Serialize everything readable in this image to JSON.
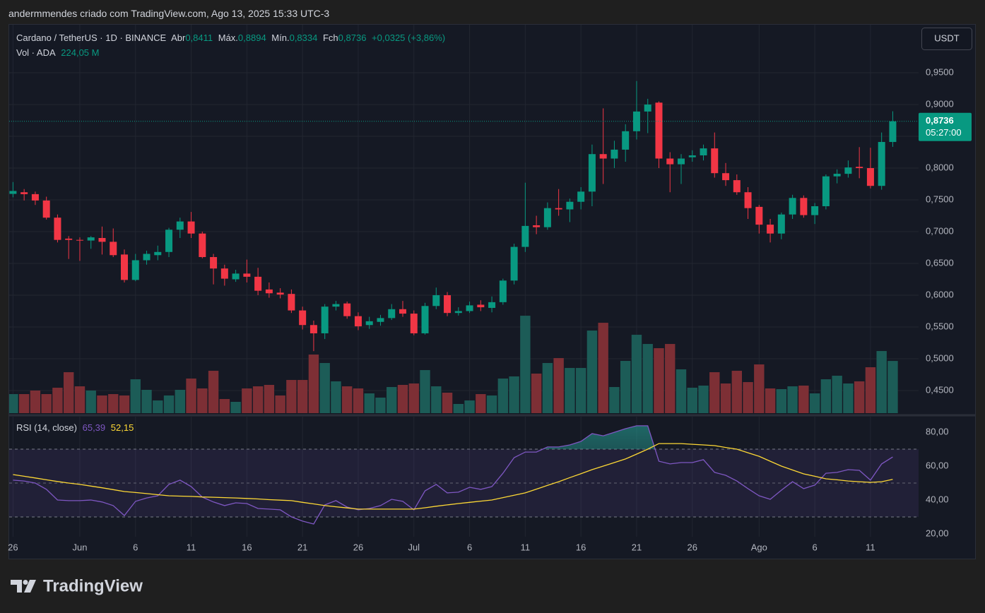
{
  "caption": "andermmendes criado com TradingView.com, Ago 13, 2025 15:33 UTC-3",
  "brand": "TradingView",
  "currency_button": "USDT",
  "chart_data": [
    {
      "type": "candlestick",
      "title": "Cardano / TetherUS · 1D · BINANCE",
      "legend_labels": [
        "Abr",
        "Máx.",
        "Mín.",
        "Fch"
      ],
      "legend_values": [
        "0,8411",
        "0,8894",
        "0,8334",
        "0,8736"
      ],
      "change_label": "+0,0325 (+3,86%)",
      "categories": [
        "26",
        null,
        null,
        null,
        null,
        null,
        "Jun",
        null,
        null,
        null,
        null,
        "6",
        null,
        null,
        null,
        null,
        "11",
        null,
        null,
        null,
        null,
        "16",
        null,
        null,
        null,
        null,
        "21",
        null,
        null,
        null,
        null,
        "26",
        null,
        null,
        null,
        null,
        "Jul",
        null,
        null,
        null,
        null,
        "6",
        null,
        null,
        null,
        null,
        "11",
        null,
        null,
        null,
        null,
        "16",
        null,
        null,
        null,
        null,
        "21",
        null,
        null,
        null,
        null,
        "26",
        null,
        null,
        null,
        null,
        null,
        "Ago",
        null,
        null,
        null,
        null,
        "6",
        null,
        null,
        null,
        null,
        "11",
        null,
        null
      ],
      "open": [
        0.7594,
        0.762,
        0.759,
        0.749,
        0.722,
        0.689,
        0.687,
        0.686,
        0.69,
        0.684,
        0.664,
        0.624,
        0.655,
        0.663,
        0.668,
        0.703,
        0.716,
        0.697,
        0.66,
        0.642,
        0.625,
        0.634,
        0.629,
        0.609,
        0.604,
        0.602,
        0.576,
        0.553,
        0.54,
        0.582,
        0.587,
        0.567,
        0.553,
        0.558,
        0.564,
        0.578,
        0.571,
        0.54,
        0.583,
        0.6,
        0.572,
        0.575,
        0.585,
        0.58,
        0.589,
        0.623,
        0.676,
        0.71,
        0.707,
        0.737,
        0.735,
        0.747,
        0.763,
        0.822,
        0.815,
        0.829,
        0.858,
        0.889,
        0.903,
        0.815,
        0.806,
        0.817,
        0.82,
        0.831,
        0.792,
        0.781,
        0.762,
        0.739,
        0.711,
        0.697,
        0.727,
        0.753,
        0.726,
        0.74,
        0.787,
        0.791,
        0.802,
        0.8,
        0.772,
        0.8411
      ],
      "high": [
        0.778,
        0.767,
        0.763,
        0.755,
        0.727,
        0.693,
        0.691,
        0.693,
        0.708,
        0.705,
        0.672,
        0.665,
        0.67,
        0.678,
        0.706,
        0.722,
        0.731,
        0.7,
        0.665,
        0.648,
        0.64,
        0.656,
        0.643,
        0.62,
        0.611,
        0.609,
        0.582,
        0.56,
        0.586,
        0.591,
        0.59,
        0.573,
        0.566,
        0.569,
        0.586,
        0.591,
        0.576,
        0.588,
        0.612,
        0.605,
        0.581,
        0.59,
        0.592,
        0.598,
        0.626,
        0.681,
        0.777,
        0.725,
        0.746,
        0.767,
        0.752,
        0.77,
        0.837,
        0.894,
        0.843,
        0.869,
        0.937,
        0.909,
        0.905,
        0.825,
        0.822,
        0.828,
        0.837,
        0.856,
        0.808,
        0.79,
        0.77,
        0.742,
        0.72,
        0.73,
        0.758,
        0.757,
        0.745,
        0.79,
        0.798,
        0.812,
        0.833,
        0.832,
        0.856,
        0.8894
      ],
      "low": [
        0.754,
        0.749,
        0.742,
        0.719,
        0.683,
        0.657,
        0.654,
        0.673,
        0.664,
        0.66,
        0.62,
        0.622,
        0.648,
        0.655,
        0.66,
        0.69,
        0.69,
        0.658,
        0.617,
        0.615,
        0.621,
        0.62,
        0.6,
        0.596,
        0.595,
        0.572,
        0.546,
        0.512,
        0.531,
        0.576,
        0.563,
        0.545,
        0.547,
        0.552,
        0.561,
        0.566,
        0.537,
        0.538,
        0.578,
        0.567,
        0.568,
        0.572,
        0.575,
        0.573,
        0.585,
        0.617,
        0.668,
        0.696,
        0.703,
        0.725,
        0.715,
        0.735,
        0.74,
        0.775,
        0.8,
        0.81,
        0.845,
        0.855,
        0.8,
        0.762,
        0.775,
        0.81,
        0.812,
        0.785,
        0.772,
        0.758,
        0.72,
        0.697,
        0.683,
        0.688,
        0.72,
        0.722,
        0.712,
        0.735,
        0.776,
        0.785,
        0.784,
        0.768,
        0.766,
        0.8334
      ],
      "close": [
        0.764,
        0.759,
        0.749,
        0.722,
        0.687,
        0.687,
        0.686,
        0.691,
        0.684,
        0.663,
        0.624,
        0.655,
        0.665,
        0.668,
        0.703,
        0.716,
        0.697,
        0.66,
        0.642,
        0.626,
        0.634,
        0.629,
        0.607,
        0.603,
        0.601,
        0.576,
        0.553,
        0.54,
        0.582,
        0.586,
        0.567,
        0.551,
        0.559,
        0.564,
        0.578,
        0.571,
        0.54,
        0.583,
        0.6,
        0.572,
        0.575,
        0.584,
        0.581,
        0.589,
        0.623,
        0.676,
        0.709,
        0.707,
        0.737,
        0.735,
        0.747,
        0.763,
        0.822,
        0.815,
        0.829,
        0.858,
        0.889,
        0.9,
        0.815,
        0.806,
        0.815,
        0.82,
        0.831,
        0.792,
        0.781,
        0.762,
        0.737,
        0.711,
        0.697,
        0.727,
        0.753,
        0.726,
        0.74,
        0.787,
        0.791,
        0.801,
        0.8,
        0.772,
        0.8411,
        0.8736
      ],
      "up_color": "#089981",
      "down_color": "#f23645",
      "ylim": [
        0.4144,
        1.0267
      ],
      "yticks": [
        {
          "value": 0.45,
          "label": "0,4500"
        },
        {
          "value": 0.5,
          "label": "0,5000"
        },
        {
          "value": 0.55,
          "label": "0,5500"
        },
        {
          "value": 0.6,
          "label": "0,6000"
        },
        {
          "value": 0.65,
          "label": "0,6500"
        },
        {
          "value": 0.7,
          "label": "0,7000"
        },
        {
          "value": 0.75,
          "label": "0,7500"
        },
        {
          "value": 0.8,
          "label": "0,8000"
        },
        {
          "value": 0.85,
          "label": "0,8500"
        },
        {
          "value": 0.9,
          "label": "0,9000"
        },
        {
          "value": 0.95,
          "label": "0,9500"
        }
      ],
      "grid": true,
      "last_price_label": "0,8736",
      "countdown": "05:27:00",
      "volume": {
        "name": "Vol · ADA",
        "value_label": "224,05 M",
        "values": [
          81.8,
          81.8,
          97.0,
          81.8,
          109.1,
          175.7,
          115.1,
          97.0,
          75.8,
          81.8,
          75.8,
          145.4,
          100.0,
          54.5,
          75.8,
          100.0,
          148.5,
          106.1,
          181.8,
          60.6,
          48.5,
          106.1,
          115.1,
          121.2,
          75.8,
          142.4,
          142.4,
          251.5,
          215.1,
          136.4,
          115.1,
          106.1,
          84.8,
          66.7,
          112.1,
          121.2,
          127.3,
          184.8,
          115.1,
          87.9,
          39.4,
          54.5,
          81.8,
          75.8,
          148.5,
          157.6,
          418.1,
          169.7,
          215.1,
          236.3,
          193.9,
          193.9,
          354.5,
          387.8,
          112.1,
          224.2,
          336.3,
          296.9,
          278.8,
          296.9,
          187.9,
          109.1,
          118.2,
          175.7,
          127.3,
          181.8,
          133.3,
          209.1,
          106.1,
          103.0,
          115.1,
          118.2,
          84.8,
          145.4,
          160.6,
          127.3,
          136.4,
          197.0,
          266.6,
          224.05
        ],
        "ylim": [
          0,
          1670
        ],
        "up_color": "#1c5c57",
        "down_color": "#7d2f35"
      }
    },
    {
      "type": "line",
      "title": "RSI (14, close)",
      "series": [
        {
          "color": "#7e57c2",
          "value_label": "65,39",
          "values": [
            51.7,
            51.2,
            50.0,
            46.3,
            40.0,
            39.6,
            39.6,
            40.0,
            38.8,
            36.7,
            30.8,
            39.2,
            41.2,
            42.5,
            49.2,
            51.7,
            47.9,
            41.7,
            38.8,
            36.7,
            38.3,
            37.9,
            35.0,
            34.6,
            34.2,
            30.0,
            27.5,
            25.8,
            37.1,
            39.6,
            35.8,
            34.2,
            35.0,
            36.7,
            40.4,
            39.2,
            34.2,
            45.4,
            49.2,
            44.2,
            44.6,
            47.5,
            46.3,
            47.9,
            55.8,
            65.0,
            68.3,
            68.3,
            71.3,
            71.3,
            72.5,
            74.6,
            79.2,
            77.9,
            80.0,
            82.1,
            83.8,
            83.8,
            62.9,
            61.3,
            62.1,
            62.1,
            63.8,
            56.3,
            54.6,
            51.2,
            46.7,
            42.5,
            40.4,
            45.8,
            50.8,
            46.7,
            48.8,
            55.8,
            56.3,
            57.9,
            57.5,
            51.7,
            61.3,
            65.39
          ]
        },
        {
          "color": "#fdd835",
          "value_label": "52,15",
          "values": [
            55.0,
            54.0,
            53.0,
            51.9,
            50.9,
            50.0,
            49.2,
            48.2,
            47.2,
            46.1,
            45.0,
            44.4,
            43.8,
            43.1,
            42.5,
            42.3,
            42.1,
            41.8,
            41.6,
            41.4,
            41.2,
            40.9,
            40.6,
            40.2,
            39.9,
            39.6,
            38.6,
            37.7,
            36.7,
            36.0,
            35.3,
            34.6,
            34.6,
            34.6,
            34.6,
            34.6,
            34.6,
            35.4,
            36.3,
            37.1,
            37.9,
            38.6,
            39.3,
            40.0,
            41.4,
            42.8,
            44.2,
            46.4,
            48.6,
            50.8,
            53.2,
            55.5,
            57.9,
            60.0,
            62.1,
            64.2,
            67.1,
            70.0,
            73.3,
            73.3,
            73.3,
            72.9,
            72.5,
            72.1,
            71.0,
            70.0,
            67.9,
            65.8,
            62.9,
            60.0,
            57.7,
            55.4,
            54.0,
            52.5,
            51.9,
            51.2,
            50.8,
            50.4,
            50.8,
            52.15
          ]
        }
      ],
      "ylim": [
        18.3,
        89.2
      ],
      "yticks": [
        {
          "value": 20,
          "label": "20,00"
        },
        {
          "value": 40,
          "label": "40,00"
        },
        {
          "value": 60,
          "label": "60,00"
        },
        {
          "value": 80,
          "label": "80,00"
        }
      ],
      "bands": [
        70,
        50,
        30
      ],
      "band_color": "#7e57c2",
      "overbought_color": "#26a69a"
    }
  ]
}
